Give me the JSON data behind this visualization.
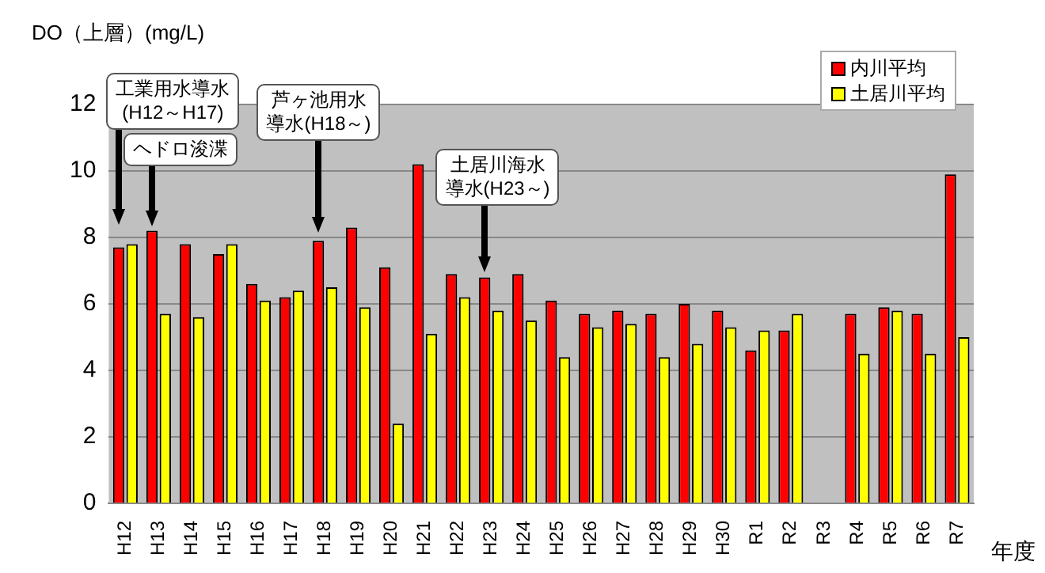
{
  "chart_data": {
    "type": "bar",
    "ylabel": "DO（上層）(mg/L)",
    "xlabel": "年度",
    "categories": [
      "H12",
      "H13",
      "H14",
      "H15",
      "H16",
      "H17",
      "H18",
      "H19",
      "H20",
      "H21",
      "H22",
      "H23",
      "H24",
      "H25",
      "H26",
      "H27",
      "H28",
      "H29",
      "H30",
      "R1",
      "R2",
      "R3",
      "R4",
      "R5",
      "R6",
      "R7"
    ],
    "series": [
      {
        "name": "内川平均",
        "color": "#ff0000",
        "values": [
          7.7,
          8.2,
          7.8,
          7.5,
          6.6,
          6.2,
          7.9,
          8.3,
          7.1,
          10.2,
          6.9,
          6.8,
          6.9,
          6.1,
          5.7,
          5.8,
          5.7,
          6.0,
          5.8,
          4.6,
          5.2,
          null,
          5.7,
          5.9,
          5.7,
          9.9
        ]
      },
      {
        "name": "土居川平均",
        "color": "#ffff00",
        "values": [
          7.8,
          5.7,
          5.6,
          7.8,
          6.1,
          6.4,
          6.5,
          5.9,
          2.4,
          5.1,
          6.2,
          5.8,
          5.5,
          4.4,
          5.3,
          5.4,
          4.4,
          4.8,
          5.3,
          5.2,
          5.7,
          null,
          4.5,
          5.8,
          4.5,
          5.0
        ]
      }
    ],
    "ylim": [
      0,
      12
    ],
    "yticks": [
      0,
      2,
      4,
      6,
      8,
      10,
      12
    ],
    "grid": "y",
    "legend": "top right",
    "annotations": [
      "工業用水導水(H12～H17)",
      "ヘドロ浚渫",
      "芦ヶ池用水導水(H18～)",
      "土居川海水導水(H23～)"
    ]
  }
}
